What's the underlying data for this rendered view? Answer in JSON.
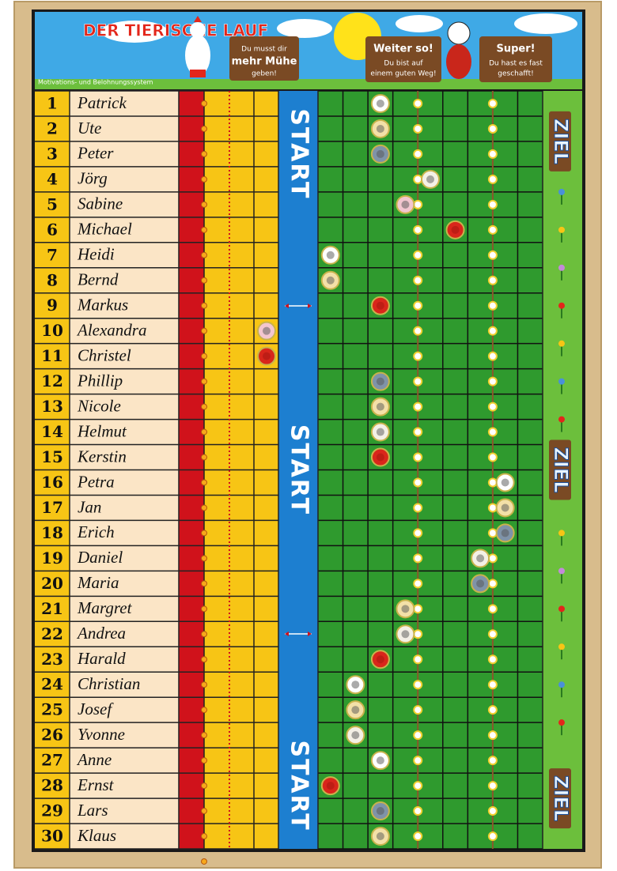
{
  "header": {
    "title": "DER TIERISCHE LAUF",
    "subtitle": "Motivations- und Belohnungssystem",
    "signs": [
      [
        "Du musst dir",
        "mehr Mühe",
        "geben!"
      ],
      [
        "Weiter so!",
        "Du bist auf",
        "einem guten Weg!"
      ],
      [
        "Super!",
        "Du hast es fast",
        "geschafft!"
      ]
    ]
  },
  "rows": [
    {
      "number": 1,
      "name": "Patrick"
    },
    {
      "number": 2,
      "name": "Ute"
    },
    {
      "number": 3,
      "name": "Peter"
    },
    {
      "number": 4,
      "name": "Jörg"
    },
    {
      "number": 5,
      "name": "Sabine"
    },
    {
      "number": 6,
      "name": "Michael"
    },
    {
      "number": 7,
      "name": "Heidi"
    },
    {
      "number": 8,
      "name": "Bernd"
    },
    {
      "number": 9,
      "name": "Markus"
    },
    {
      "number": 10,
      "name": "Alexandra"
    },
    {
      "number": 11,
      "name": "Christel"
    },
    {
      "number": 12,
      "name": "Phillip"
    },
    {
      "number": 13,
      "name": "Nicole"
    },
    {
      "number": 14,
      "name": "Helmut"
    },
    {
      "number": 15,
      "name": "Kerstin"
    },
    {
      "number": 16,
      "name": "Petra"
    },
    {
      "number": 17,
      "name": "Jan"
    },
    {
      "number": 18,
      "name": "Erich"
    },
    {
      "number": 19,
      "name": "Daniel"
    },
    {
      "number": 20,
      "name": "Maria"
    },
    {
      "number": 21,
      "name": "Margret"
    },
    {
      "number": 22,
      "name": "Andrea"
    },
    {
      "number": 23,
      "name": "Harald"
    },
    {
      "number": 24,
      "name": "Christian"
    },
    {
      "number": 25,
      "name": "Josef"
    },
    {
      "number": 26,
      "name": "Yvonne"
    },
    {
      "number": 27,
      "name": "Anne"
    },
    {
      "number": 28,
      "name": "Ernst"
    },
    {
      "number": 29,
      "name": "Lars"
    },
    {
      "number": 30,
      "name": "Klaus"
    }
  ],
  "start_labels": [
    "START",
    "START",
    "START"
  ],
  "goal_labels": [
    "ZIEL",
    "ZIEL",
    "ZIEL"
  ]
}
